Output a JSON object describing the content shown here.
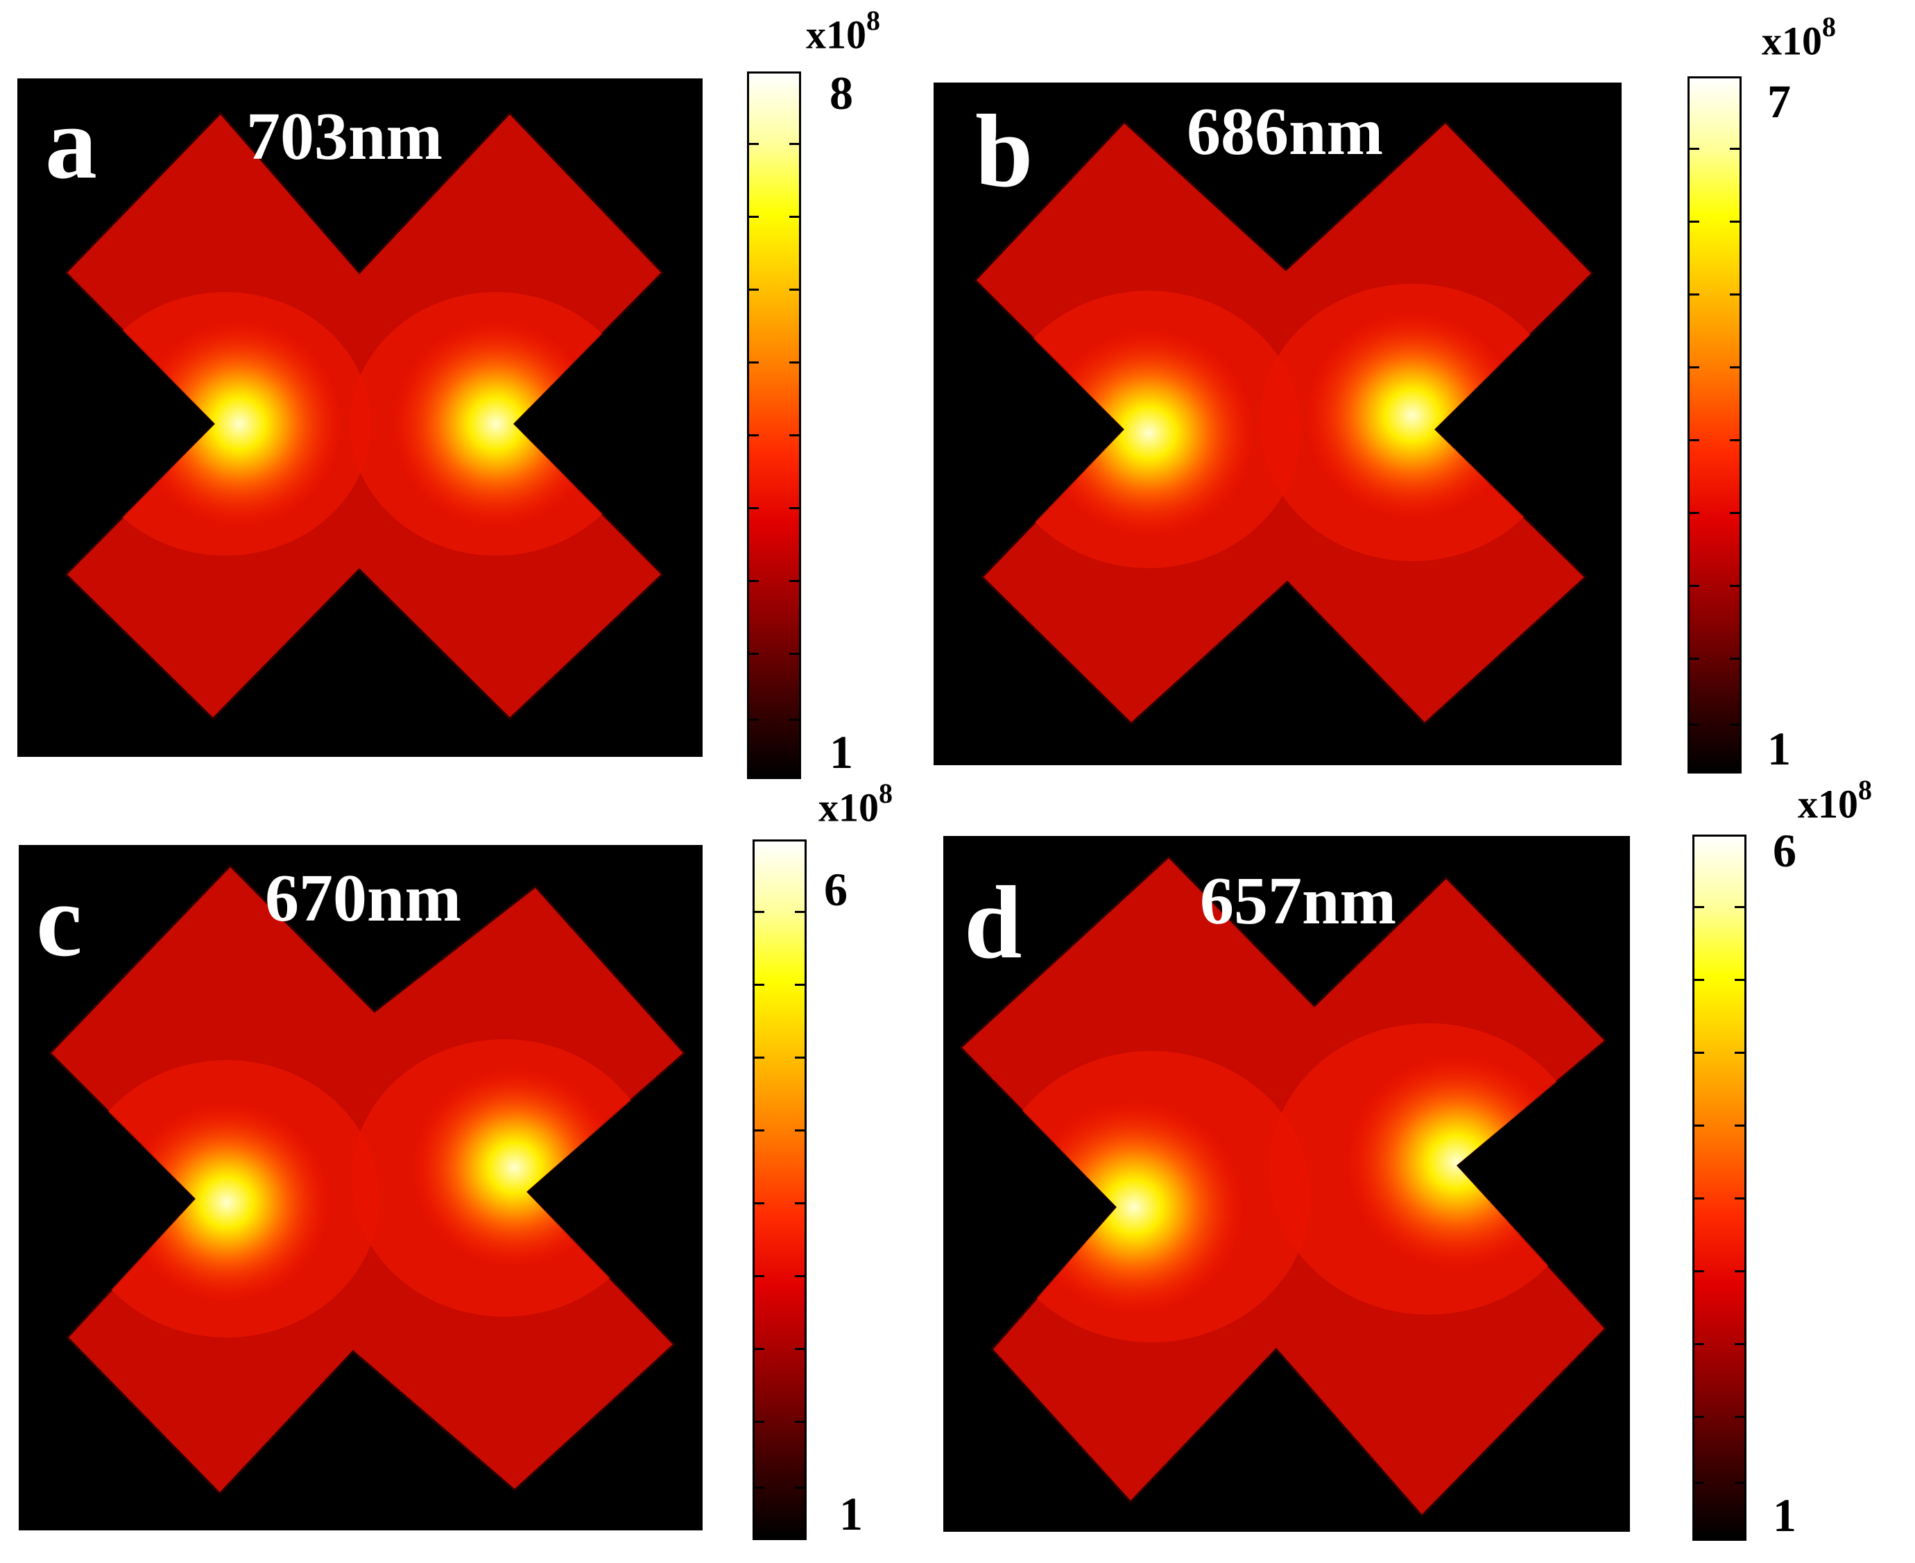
{
  "chart_data": [
    {
      "type": "heatmap",
      "panel": "a",
      "title": "703nm",
      "colorbar": {
        "min": 1,
        "max": 8,
        "exponent_label": "x10",
        "exponent": "8"
      }
    },
    {
      "type": "heatmap",
      "panel": "b",
      "title": "686nm",
      "colorbar": {
        "min": 1,
        "max": 7,
        "exponent_label": "x10",
        "exponent": "8"
      }
    },
    {
      "type": "heatmap",
      "panel": "c",
      "title": "670nm",
      "colorbar": {
        "min": 1,
        "max": 6,
        "exponent_label": "x10",
        "exponent": "8"
      }
    },
    {
      "type": "heatmap",
      "panel": "d",
      "title": "657nm",
      "colorbar": {
        "min": 1,
        "max": 6,
        "exponent_label": "x10",
        "exponent": "8"
      }
    }
  ],
  "colormap": [
    "#000000",
    "#8a0000",
    "#e00000",
    "#ff7a00",
    "#ffff00",
    "#ffffff"
  ]
}
